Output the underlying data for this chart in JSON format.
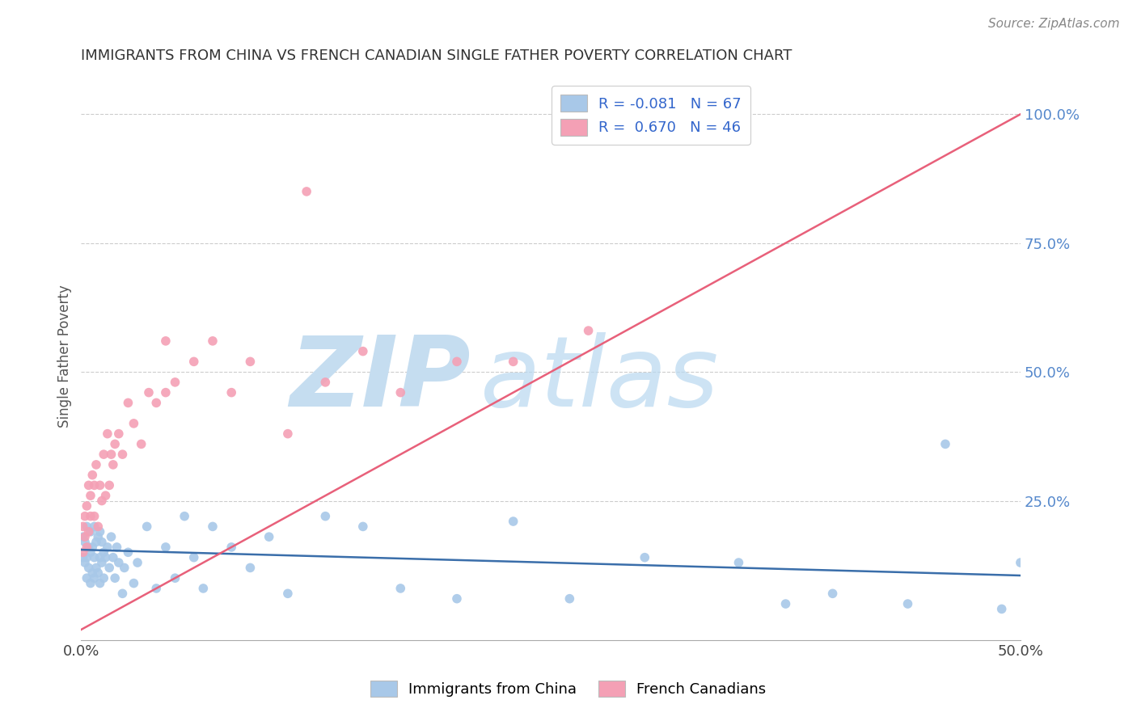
{
  "title": "IMMIGRANTS FROM CHINA VS FRENCH CANADIAN SINGLE FATHER POVERTY CORRELATION CHART",
  "source": "Source: ZipAtlas.com",
  "ylabel": "Single Father Poverty",
  "xlim": [
    0.0,
    0.5
  ],
  "ylim": [
    -0.02,
    1.08
  ],
  "color_blue": "#a8c8e8",
  "color_pink": "#f4a0b5",
  "color_blue_line": "#3a6eaa",
  "color_pink_line": "#e8607a",
  "watermark_zip": "ZIP",
  "watermark_atlas": "atlas",
  "watermark_color_zip": "#c5ddf0",
  "watermark_color_atlas": "#c5ddf0",
  "blue_R": -0.081,
  "blue_N": 67,
  "pink_R": 0.67,
  "pink_N": 46,
  "blue_line_x": [
    0.0,
    0.5
  ],
  "blue_line_y": [
    0.155,
    0.105
  ],
  "pink_line_x": [
    0.0,
    0.5
  ],
  "pink_line_y": [
    0.0,
    1.0
  ],
  "blue_points_x": [
    0.001,
    0.001,
    0.002,
    0.002,
    0.003,
    0.003,
    0.003,
    0.004,
    0.004,
    0.005,
    0.005,
    0.005,
    0.006,
    0.006,
    0.007,
    0.007,
    0.007,
    0.008,
    0.008,
    0.009,
    0.009,
    0.01,
    0.01,
    0.01,
    0.011,
    0.011,
    0.012,
    0.012,
    0.013,
    0.014,
    0.015,
    0.016,
    0.017,
    0.018,
    0.019,
    0.02,
    0.022,
    0.023,
    0.025,
    0.028,
    0.03,
    0.035,
    0.04,
    0.045,
    0.05,
    0.055,
    0.06,
    0.065,
    0.07,
    0.08,
    0.09,
    0.1,
    0.11,
    0.13,
    0.15,
    0.17,
    0.2,
    0.23,
    0.26,
    0.3,
    0.35,
    0.4,
    0.44,
    0.46,
    0.49,
    0.5,
    0.375
  ],
  "blue_points_y": [
    0.14,
    0.18,
    0.13,
    0.17,
    0.1,
    0.14,
    0.2,
    0.12,
    0.16,
    0.09,
    0.15,
    0.19,
    0.11,
    0.16,
    0.1,
    0.14,
    0.2,
    0.12,
    0.17,
    0.11,
    0.18,
    0.09,
    0.14,
    0.19,
    0.13,
    0.17,
    0.1,
    0.15,
    0.14,
    0.16,
    0.12,
    0.18,
    0.14,
    0.1,
    0.16,
    0.13,
    0.07,
    0.12,
    0.15,
    0.09,
    0.13,
    0.2,
    0.08,
    0.16,
    0.1,
    0.22,
    0.14,
    0.08,
    0.2,
    0.16,
    0.12,
    0.18,
    0.07,
    0.22,
    0.2,
    0.08,
    0.06,
    0.21,
    0.06,
    0.14,
    0.13,
    0.07,
    0.05,
    0.36,
    0.04,
    0.13,
    0.05
  ],
  "pink_points_x": [
    0.001,
    0.001,
    0.002,
    0.002,
    0.003,
    0.003,
    0.004,
    0.004,
    0.005,
    0.005,
    0.006,
    0.007,
    0.007,
    0.008,
    0.009,
    0.01,
    0.011,
    0.012,
    0.013,
    0.014,
    0.015,
    0.016,
    0.017,
    0.018,
    0.02,
    0.022,
    0.025,
    0.028,
    0.032,
    0.036,
    0.04,
    0.045,
    0.05,
    0.06,
    0.07,
    0.08,
    0.09,
    0.11,
    0.13,
    0.15,
    0.17,
    0.2,
    0.23,
    0.27,
    0.12,
    0.045
  ],
  "pink_points_y": [
    0.15,
    0.2,
    0.18,
    0.22,
    0.16,
    0.24,
    0.19,
    0.28,
    0.22,
    0.26,
    0.3,
    0.22,
    0.28,
    0.32,
    0.2,
    0.28,
    0.25,
    0.34,
    0.26,
    0.38,
    0.28,
    0.34,
    0.32,
    0.36,
    0.38,
    0.34,
    0.44,
    0.4,
    0.36,
    0.46,
    0.44,
    0.46,
    0.48,
    0.52,
    0.56,
    0.46,
    0.52,
    0.38,
    0.48,
    0.54,
    0.46,
    0.52,
    0.52,
    0.58,
    0.85,
    0.56
  ]
}
